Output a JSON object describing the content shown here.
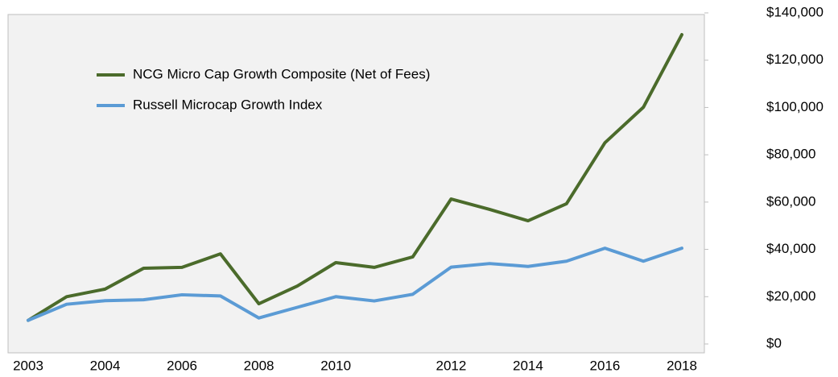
{
  "chart_data": {
    "type": "line",
    "categories": [
      "2003",
      null,
      "2004",
      null,
      "2006",
      null,
      "2008",
      null,
      "2010",
      null,
      null,
      "2012",
      null,
      "2014",
      null,
      "2016",
      null,
      "2018"
    ],
    "series": [
      {
        "name": "NCG Micro Cap Growth Composite (Net of Fees)",
        "color": "#4b6b2b",
        "values": [
          10000,
          20000,
          23200,
          32000,
          32400,
          38100,
          17000,
          24500,
          34400,
          32400,
          36800,
          61300,
          56900,
          52100,
          59300,
          85100,
          100100,
          130800
        ]
      },
      {
        "name": "Russell Microcap Growth Index",
        "color": "#5b9bd5",
        "values": [
          10000,
          16800,
          18300,
          18700,
          20800,
          20300,
          11000,
          15500,
          20000,
          18200,
          21000,
          32500,
          34000,
          32800,
          35000,
          40500,
          35000,
          40500
        ]
      }
    ],
    "ylim": [
      0,
      140000
    ],
    "yticks": [
      {
        "value": 0,
        "label": "$0"
      },
      {
        "value": 20000,
        "label": "$20,000"
      },
      {
        "value": 40000,
        "label": "$40,000"
      },
      {
        "value": 60000,
        "label": "$60,000"
      },
      {
        "value": 80000,
        "label": "$80,000"
      },
      {
        "value": 100000,
        "label": "$100,000"
      },
      {
        "value": 120000,
        "label": "$120,000"
      },
      {
        "value": 140000,
        "label": "$140,000"
      }
    ],
    "legend": "upper left"
  }
}
